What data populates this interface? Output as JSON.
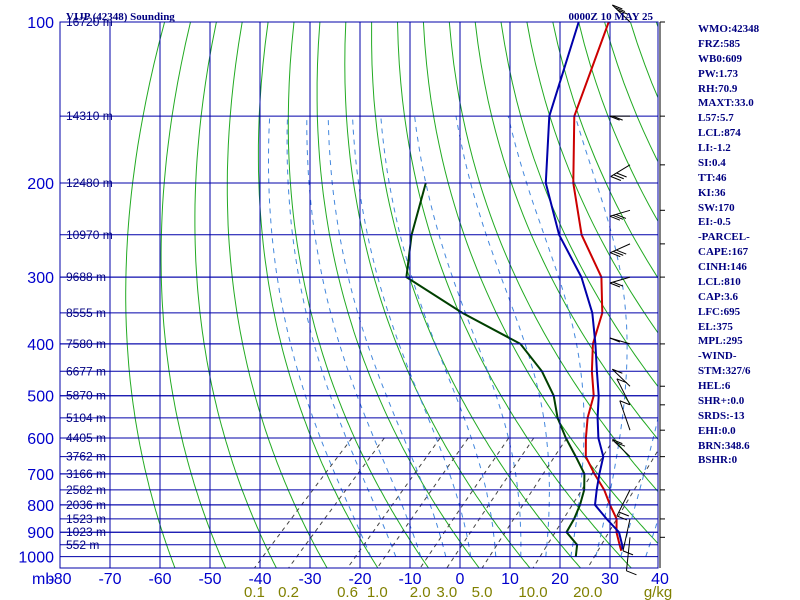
{
  "header": {
    "station": "VIJP (42348) Sounding",
    "valid_time": "0000Z 10 MAY 25"
  },
  "indices": [
    "WMO:42348",
    "FRZ:585",
    "WB0:609",
    "PW:1.73",
    "RH:70.9",
    "MAXT:33.0",
    "L57:5.7",
    "LCL:874",
    "LI:-1.2",
    "SI:0.4",
    "TT:46",
    "KI:36",
    "SW:170",
    "EI:-0.5",
    "-PARCEL-",
    "CAPE:167",
    "CINH:146",
    "LCL:810",
    "CAP:3.6",
    "LFC:695",
    "EL:375",
    "MPL:295",
    "-WIND-",
    "STM:327/6",
    "HEL:6",
    "SHR+:0.0",
    "SRDS:-13",
    "EHI:0.0",
    "BRN:348.6",
    "BSHR:0"
  ],
  "chart_data": {
    "type": "line",
    "subtype": "skew-t log-p",
    "x_axis_unit_label": "mb",
    "pressure_ticks": [
      100,
      200,
      300,
      400,
      500,
      600,
      700,
      800,
      900,
      1000
    ],
    "temperature_ticks": [
      -80,
      -70,
      -60,
      -50,
      -40,
      -30,
      -20,
      -10,
      0,
      10,
      20,
      30,
      40
    ],
    "temperature_tick_labels": [
      "-80",
      "-70",
      "-60",
      "-50",
      "-40",
      "-30",
      "-20",
      "-10",
      "0",
      "10",
      "20",
      "30",
      "40"
    ],
    "mixing_ratio_labels": [
      "0.1",
      "0.2",
      "0.6",
      "1.0",
      "2.0",
      "3.0",
      "5.0",
      "10.0",
      "20.0",
      "g/kg"
    ],
    "mixing_ratio_values": [
      0.1,
      0.2,
      0.6,
      1.0,
      2.0,
      3.0,
      5.0,
      10.0,
      20.0
    ],
    "height_labels": [
      {
        "p": 100,
        "text": "16720 m"
      },
      {
        "p": 150,
        "text": "14310 m"
      },
      {
        "p": 200,
        "text": "12480 m"
      },
      {
        "p": 250,
        "text": "10970 m"
      },
      {
        "p": 300,
        "text": "9688 m"
      },
      {
        "p": 350,
        "text": "8555 m"
      },
      {
        "p": 400,
        "text": "7580 m"
      },
      {
        "p": 450,
        "text": "6677 m"
      },
      {
        "p": 500,
        "text": "5870 m"
      },
      {
        "p": 550,
        "text": "5104 m"
      },
      {
        "p": 600,
        "text": "4405 m"
      },
      {
        "p": 650,
        "text": "3762 m"
      },
      {
        "p": 700,
        "text": "3166 m"
      },
      {
        "p": 750,
        "text": "2582 m"
      },
      {
        "p": 800,
        "text": "2036 m"
      },
      {
        "p": 850,
        "text": "1523 m"
      },
      {
        "p": 900,
        "text": "1023 m"
      },
      {
        "p": 950,
        "text": "552 m"
      }
    ],
    "series": [
      {
        "color": "#cc0000",
        "role": "temperature",
        "points": [
          [
            100,
            -74.0
          ],
          [
            150,
            -63.0
          ],
          [
            200,
            -50.5
          ],
          [
            250,
            -39.0
          ],
          [
            300,
            -27.0
          ],
          [
            350,
            -20.0
          ],
          [
            400,
            -16.0
          ],
          [
            450,
            -11.0
          ],
          [
            500,
            -6.0
          ],
          [
            550,
            -3.0
          ],
          [
            600,
            0.5
          ],
          [
            650,
            4.0
          ],
          [
            700,
            9.0
          ],
          [
            750,
            14.0
          ],
          [
            800,
            18.0
          ],
          [
            850,
            22.0
          ],
          [
            900,
            24.5
          ],
          [
            950,
            27.5
          ],
          [
            975,
            29.0
          ]
        ]
      },
      {
        "color": "#0000aa",
        "role": "parcel",
        "points": [
          [
            100,
            -80.0
          ],
          [
            150,
            -68.0
          ],
          [
            200,
            -56.0
          ],
          [
            250,
            -43.5
          ],
          [
            300,
            -31.0
          ],
          [
            350,
            -22.0
          ],
          [
            400,
            -15.5
          ],
          [
            450,
            -10.0
          ],
          [
            500,
            -5.0
          ],
          [
            550,
            -1.0
          ],
          [
            600,
            3.0
          ],
          [
            650,
            7.5
          ],
          [
            700,
            10.0
          ],
          [
            750,
            12.5
          ],
          [
            800,
            15.0
          ],
          [
            850,
            20.0
          ],
          [
            900,
            25.0
          ],
          [
            950,
            28.0
          ],
          [
            970,
            29.0
          ]
        ]
      },
      {
        "color": "#004000",
        "role": "dewpoint",
        "points": [
          [
            200,
            -80.0
          ],
          [
            250,
            -73.0
          ],
          [
            300,
            -66.0
          ],
          [
            350,
            -48.0
          ],
          [
            400,
            -30.5
          ],
          [
            450,
            -21.0
          ],
          [
            500,
            -14.0
          ],
          [
            550,
            -9.0
          ],
          [
            600,
            -3.5
          ],
          [
            650,
            2.0
          ],
          [
            700,
            7.0
          ],
          [
            750,
            10.0
          ],
          [
            800,
            12.0
          ],
          [
            850,
            13.5
          ],
          [
            900,
            14.5
          ],
          [
            950,
            19.0
          ],
          [
            1000,
            21.0
          ]
        ]
      }
    ],
    "wind_barbs": [
      {
        "p": 100,
        "dir": 300,
        "spd": 30
      },
      {
        "p": 150,
        "dir": 270,
        "spd": 20
      },
      {
        "p": 185,
        "dir": 250,
        "spd": 25
      },
      {
        "p": 225,
        "dir": 260,
        "spd": 30
      },
      {
        "p": 260,
        "dir": 255,
        "spd": 25
      },
      {
        "p": 300,
        "dir": 260,
        "spd": 20
      },
      {
        "p": 400,
        "dir": 280,
        "spd": 10
      },
      {
        "p": 480,
        "dir": 300,
        "spd": 10
      },
      {
        "p": 520,
        "dir": 320,
        "spd": 10
      },
      {
        "p": 580,
        "dir": 330,
        "spd": 10
      },
      {
        "p": 650,
        "dir": 300,
        "spd": 15
      },
      {
        "p": 750,
        "dir": 220,
        "spd": 15
      },
      {
        "p": 850,
        "dir": 200,
        "spd": 10
      },
      {
        "p": 920,
        "dir": 190,
        "spd": 10
      }
    ]
  }
}
